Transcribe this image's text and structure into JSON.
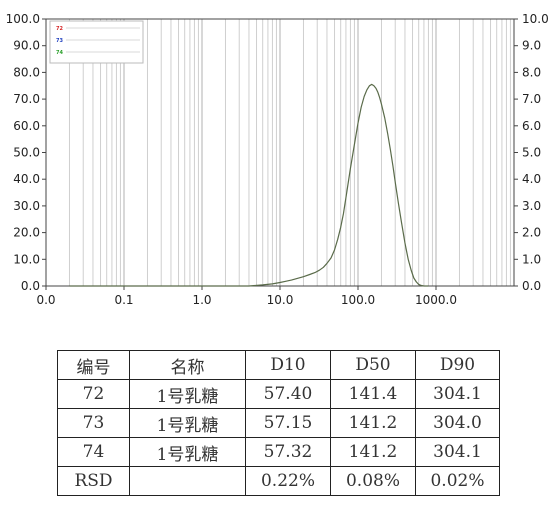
{
  "chart_data": {
    "type": "line",
    "x_scale": "log",
    "xlim": [
      0.01,
      10000
    ],
    "ylim": [
      0,
      100
    ],
    "y2lim": [
      0,
      10
    ],
    "x_tick_labels": [
      "0.0",
      "0.1",
      "1.0",
      "10.0",
      "100.0",
      "1000.0"
    ],
    "y_tick_labels": [
      "0.0",
      "10.0",
      "20.0",
      "30.0",
      "40.0",
      "50.0",
      "60.0",
      "70.0",
      "80.0",
      "90.0",
      "100.0"
    ],
    "y2_tick_labels": [
      "0.0",
      "1.0",
      "2.0",
      "3.0",
      "4.0",
      "5.0",
      "6.0",
      "7.0",
      "8.0",
      "9.0",
      "10.0"
    ],
    "grid": "vertical",
    "legend": {
      "placement": "top-left",
      "entries": [
        {
          "tag": "72",
          "color": "#d62728"
        },
        {
          "tag": "73",
          "color": "#1f3fbf"
        },
        {
          "tag": "74",
          "color": "#2ca02c"
        }
      ]
    },
    "series": [
      {
        "color": "#5a6b4a",
        "x": [
          0.02,
          1,
          4,
          6,
          8,
          10,
          12,
          14,
          16,
          18,
          20,
          24,
          28,
          32,
          36,
          40,
          45,
          50,
          55,
          60,
          65,
          70,
          80,
          90,
          100,
          110,
          120,
          130,
          140,
          150,
          160,
          170,
          180,
          190,
          200,
          220,
          240,
          260,
          280,
          300,
          330,
          360,
          400,
          440,
          480,
          520,
          560,
          600,
          650,
          700,
          800
        ],
        "y": [
          0,
          0,
          0,
          0.4,
          0.8,
          1.3,
          1.8,
          2.2,
          2.7,
          3.1,
          3.5,
          4.3,
          5.0,
          5.9,
          7.0,
          8.5,
          10.5,
          13.5,
          17.5,
          22.0,
          27.0,
          33.0,
          44.0,
          53.0,
          61.0,
          67.0,
          71.0,
          73.5,
          75.0,
          75.5,
          75.0,
          74.0,
          72.5,
          70.5,
          68.0,
          63.0,
          57.0,
          51.0,
          45.0,
          39.0,
          31.0,
          24.0,
          16.0,
          10.0,
          6.0,
          3.0,
          1.5,
          0.6,
          0.2,
          0,
          0
        ]
      }
    ],
    "table": {
      "columns": [
        "编号",
        "名称",
        "D10",
        "D50",
        "D90"
      ],
      "rows": [
        [
          "72",
          "1号乳糖",
          "57.40",
          "141.4",
          "304.1"
        ],
        [
          "73",
          "1号乳糖",
          "57.15",
          "141.2",
          "304.0"
        ],
        [
          "74",
          "1号乳糖",
          "57.32",
          "141.2",
          "304.1"
        ],
        [
          "RSD",
          "",
          "0.22%",
          "0.08%",
          "0.02%"
        ]
      ]
    }
  }
}
